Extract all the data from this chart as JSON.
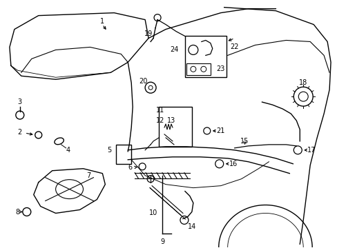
{
  "bg_color": "#ffffff",
  "line_color": "#000000",
  "text_color": "#000000",
  "fig_width": 4.89,
  "fig_height": 3.6,
  "dpi": 100
}
